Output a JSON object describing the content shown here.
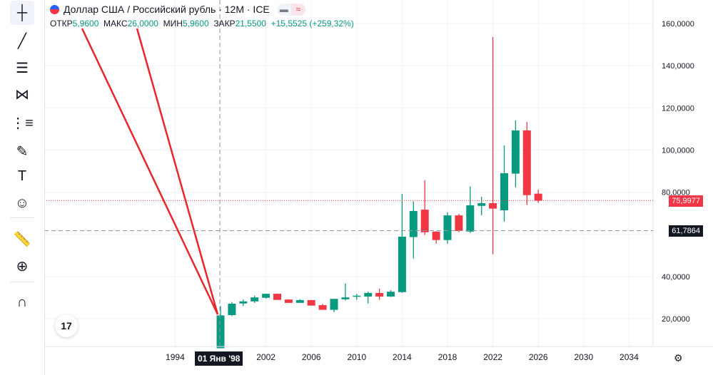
{
  "header": {
    "title": "Доллар США / Российский рубль · 12M · ICE",
    "flag_icon": "us-flag-icon",
    "ohlc": {
      "open_label": "ОТКР",
      "open": "5,9600",
      "high_label": "МАКС",
      "high": "26,0000",
      "low_label": "МИН",
      "low": "5,9600",
      "close_label": "ЗАКР",
      "close": "21,5500",
      "change": "+15,5525 (+259,32%)"
    }
  },
  "toolbar": [
    "crosshair-icon",
    "trend-line-icon",
    "fib-icon",
    "pattern-icon",
    "forecast-icon",
    "brush-icon",
    "text-icon",
    "emoji-icon",
    "ruler-icon",
    "zoom-in-icon",
    "magnet-icon"
  ],
  "price_labels": {
    "current": "75,9977",
    "crosshair": "61,7864"
  },
  "time_labels": {
    "crosshair": "01 Янв '98"
  },
  "colors": {
    "up": "#089981",
    "down": "#f23645",
    "drawing": "#e8262b"
  },
  "chart_data": {
    "type": "candlestick",
    "title": "Доллар США / Российский рубль · 12M · ICE",
    "ylim": [
      0,
      165
    ],
    "yticks": [
      20,
      40,
      60,
      80,
      100,
      120,
      140,
      160
    ],
    "ytick_labels": [
      "20,0000",
      "40,0000",
      "60,0000",
      "80,0000",
      "100,0000",
      "120,0000",
      "140,0000",
      "160,0000"
    ],
    "xlim": [
      1990,
      2037
    ],
    "xticks": [
      1994,
      1998,
      2002,
      2006,
      2010,
      2014,
      2018,
      2022,
      2026,
      2030,
      2034
    ],
    "xtick_labels": [
      "1994",
      "1998",
      "2002",
      "2006",
      "2010",
      "2014",
      "2018",
      "2022",
      "2026",
      "2030",
      "2034"
    ],
    "candles": [
      {
        "year": 1998,
        "o": 5.96,
        "h": 26.0,
        "l": 5.96,
        "c": 21.55
      },
      {
        "year": 1999,
        "o": 21.7,
        "h": 27.9,
        "l": 21.2,
        "c": 27.1
      },
      {
        "year": 2000,
        "o": 27.2,
        "h": 29.1,
        "l": 26.1,
        "c": 28.2
      },
      {
        "year": 2001,
        "o": 28.2,
        "h": 30.9,
        "l": 27.5,
        "c": 30.1
      },
      {
        "year": 2002,
        "o": 29.9,
        "h": 31.9,
        "l": 29.5,
        "c": 31.8
      },
      {
        "year": 2003,
        "o": 31.8,
        "h": 31.9,
        "l": 28.9,
        "c": 28.9
      },
      {
        "year": 2004,
        "o": 29.1,
        "h": 29.2,
        "l": 27.5,
        "c": 27.5
      },
      {
        "year": 2005,
        "o": 27.5,
        "h": 29.2,
        "l": 27.5,
        "c": 28.8
      },
      {
        "year": 2006,
        "o": 28.8,
        "h": 28.9,
        "l": 26.2,
        "c": 26.2
      },
      {
        "year": 2007,
        "o": 26.4,
        "h": 27.0,
        "l": 24.2,
        "c": 24.2
      },
      {
        "year": 2008,
        "o": 24.2,
        "h": 29.4,
        "l": 23.1,
        "c": 29.4
      },
      {
        "year": 2009,
        "o": 29.2,
        "h": 36.7,
        "l": 28.6,
        "c": 30.1
      },
      {
        "year": 2010,
        "o": 30.4,
        "h": 31.7,
        "l": 28.9,
        "c": 30.9
      },
      {
        "year": 2011,
        "o": 30.5,
        "h": 32.8,
        "l": 27.2,
        "c": 32.2
      },
      {
        "year": 2012,
        "o": 32.2,
        "h": 34.2,
        "l": 28.9,
        "c": 30.5
      },
      {
        "year": 2013,
        "o": 30.5,
        "h": 33.5,
        "l": 30.3,
        "c": 32.8
      },
      {
        "year": 2014,
        "o": 32.6,
        "h": 79.2,
        "l": 32.2,
        "c": 58.9
      },
      {
        "year": 2015,
        "o": 58.7,
        "h": 75.6,
        "l": 48.5,
        "c": 71.1
      },
      {
        "year": 2016,
        "o": 71.7,
        "h": 85.7,
        "l": 59.7,
        "c": 61.0
      },
      {
        "year": 2017,
        "o": 61.3,
        "h": 61.5,
        "l": 55.6,
        "c": 57.3
      },
      {
        "year": 2018,
        "o": 57.3,
        "h": 70.5,
        "l": 55.6,
        "c": 69.0
      },
      {
        "year": 2019,
        "o": 69.0,
        "h": 69.7,
        "l": 61.0,
        "c": 61.6
      },
      {
        "year": 2020,
        "o": 61.3,
        "h": 82.7,
        "l": 60.7,
        "c": 73.8
      },
      {
        "year": 2021,
        "o": 73.5,
        "h": 77.8,
        "l": 69.1,
        "c": 74.8
      },
      {
        "year": 2022,
        "o": 74.8,
        "h": 153.6,
        "l": 50.5,
        "c": 72.2
      },
      {
        "year": 2023,
        "o": 71.4,
        "h": 102.2,
        "l": 66.1,
        "c": 89.0
      },
      {
        "year": 2024,
        "o": 88.8,
        "h": 114.0,
        "l": 82.3,
        "c": 109.3
      },
      {
        "year": 2025,
        "o": 109.3,
        "h": 113.3,
        "l": 73.9,
        "c": 78.6
      },
      {
        "year": 2026,
        "o": 79.3,
        "h": 81.2,
        "l": 74.9,
        "c": 76.0
      }
    ],
    "current_price": 75.9977,
    "crosshair": {
      "year": 1998,
      "price": 61.7864
    }
  }
}
